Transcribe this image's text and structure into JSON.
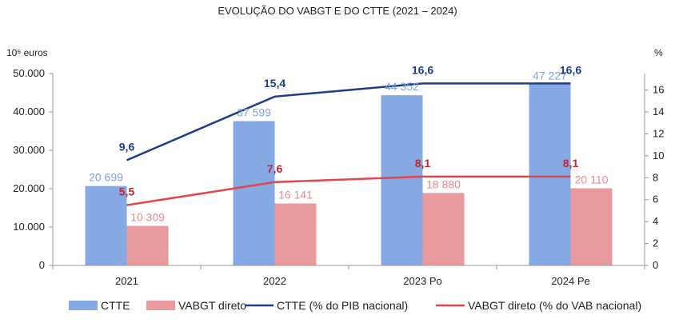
{
  "chart_data": {
    "type": "bar",
    "title": "EVOLUÇÃO DO VABGT E DO CTTE (2021 – 2024)",
    "ylabel_left": "10⁶ euros",
    "ylabel_right": "%",
    "categories": [
      "2021",
      "2022",
      "2023 Po",
      "2024 Pe"
    ],
    "y_left": {
      "min": 0,
      "max": 50000,
      "ticks": [
        0,
        10000,
        20000,
        30000,
        40000,
        50000
      ],
      "tick_labels": [
        "0",
        "10.000",
        "20.000",
        "30.000",
        "40.000",
        "50.000"
      ]
    },
    "y_right": {
      "min": 0,
      "max": 17.5,
      "ticks": [
        0,
        2,
        4,
        6,
        8,
        10,
        12,
        14,
        16
      ],
      "tick_labels": [
        "0",
        "2",
        "4",
        "6",
        "8",
        "10",
        "12",
        "14",
        "16"
      ]
    },
    "grid": false,
    "legend_position": "bottom",
    "series": [
      {
        "name": "CTTE",
        "kind": "bar",
        "axis": "left",
        "color": "#86a8e3",
        "label_color": "#7fa3dd",
        "values": [
          20699,
          37599,
          44352,
          47227
        ],
        "labels": [
          "20 699",
          "37 599",
          "44 352",
          "47 227"
        ]
      },
      {
        "name": "VABGT direto",
        "kind": "bar",
        "axis": "left",
        "color": "#e99a9e",
        "label_color": "#e48c91",
        "values": [
          10309,
          16141,
          18880,
          20110
        ],
        "labels": [
          "10 309",
          "16 141",
          "18 880",
          "20 110"
        ]
      },
      {
        "name": "CTTE (% do PIB nacional)",
        "kind": "line",
        "axis": "right",
        "color": "#1f3c88",
        "label_color": "#1f3c88",
        "values": [
          9.6,
          15.4,
          16.6,
          16.6
        ],
        "labels": [
          "9,6",
          "15,4",
          "16,6",
          "16,6"
        ]
      },
      {
        "name": "VABGT direto (% do VAB nacional)",
        "kind": "line",
        "axis": "right",
        "color": "#e0474c",
        "label_color": "#c0282e",
        "values": [
          5.5,
          7.6,
          8.1,
          8.1
        ],
        "labels": [
          "5,5",
          "7,6",
          "8,1",
          "8,1"
        ]
      }
    ]
  }
}
